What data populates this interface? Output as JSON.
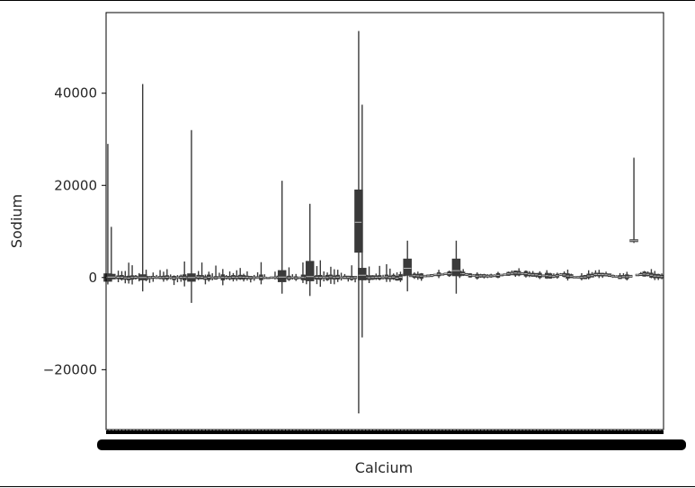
{
  "chart_data": {
    "type": "box",
    "title": "",
    "xlabel": "Calcium",
    "ylabel": "Sodium",
    "ylim": [
      -33000,
      57500
    ],
    "yticks": [
      -20000,
      0,
      20000,
      40000
    ],
    "ytick_labels": [
      "−20000",
      "0",
      "20000",
      "40000"
    ],
    "xtick_labels_note": "",
    "grid": false,
    "legend": "none",
    "box_color": "#3a3a3a",
    "prominent_boxes": [
      {
        "category_index": 0,
        "whisker_low": -1500,
        "q1": -800,
        "median": 0,
        "q3": 800,
        "whisker_high": 29000
      },
      {
        "category_index": 1,
        "whisker_low": -800,
        "q1": -300,
        "median": 100,
        "q3": 700,
        "whisker_high": 11000
      },
      {
        "category_index": 10,
        "whisker_low": -3000,
        "q1": -500,
        "median": 0,
        "q3": 600,
        "whisker_high": 42000
      },
      {
        "category_index": 24,
        "whisker_low": -5500,
        "q1": -800,
        "median": 0,
        "q3": 800,
        "whisker_high": 32000
      },
      {
        "category_index": 50,
        "whisker_low": -3500,
        "q1": -900,
        "median": 100,
        "q3": 1500,
        "whisker_high": 21000
      },
      {
        "category_index": 58,
        "whisker_low": -4000,
        "q1": -700,
        "median": 200,
        "q3": 3500,
        "whisker_high": 16000
      },
      {
        "category_index": 72,
        "whisker_low": -29500,
        "q1": 5500,
        "median": 12000,
        "q3": 19000,
        "whisker_high": 53500
      },
      {
        "category_index": 73,
        "whisker_low": -13000,
        "q1": -500,
        "median": 500,
        "q3": 2000,
        "whisker_high": 37500
      },
      {
        "category_index": 86,
        "whisker_low": -3000,
        "q1": 500,
        "median": 2000,
        "q3": 4000,
        "whisker_high": 8000
      },
      {
        "category_index": 100,
        "whisker_low": -3500,
        "q1": 400,
        "median": 1500,
        "q3": 4000,
        "whisker_high": 8000
      },
      {
        "category_index": 151,
        "whisker_low": 7500,
        "q1": 7800,
        "median": 8000,
        "q3": 8200,
        "whisker_high": 26000
      }
    ]
  }
}
